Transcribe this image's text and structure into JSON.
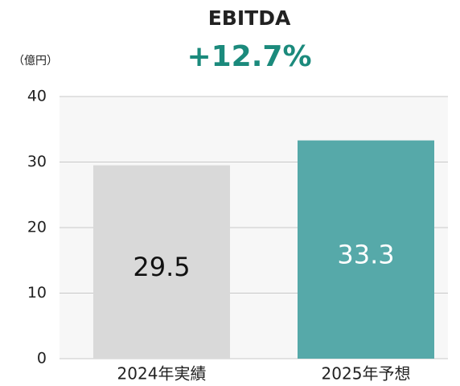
{
  "chart_data": {
    "type": "bar",
    "title": "EBITDA",
    "subtitle": "+12.7%",
    "y_axis_label": "（億円）",
    "categories": [
      "2024年実績",
      "2025年予想"
    ],
    "values": [
      29.5,
      33.3
    ],
    "colors": [
      "#d9d9d9",
      "#56a9a9"
    ],
    "label_colors": [
      "#111111",
      "#ffffff"
    ],
    "ylim": [
      0,
      40
    ],
    "yticks": [
      0,
      10,
      20,
      30,
      40
    ],
    "grid": true
  }
}
